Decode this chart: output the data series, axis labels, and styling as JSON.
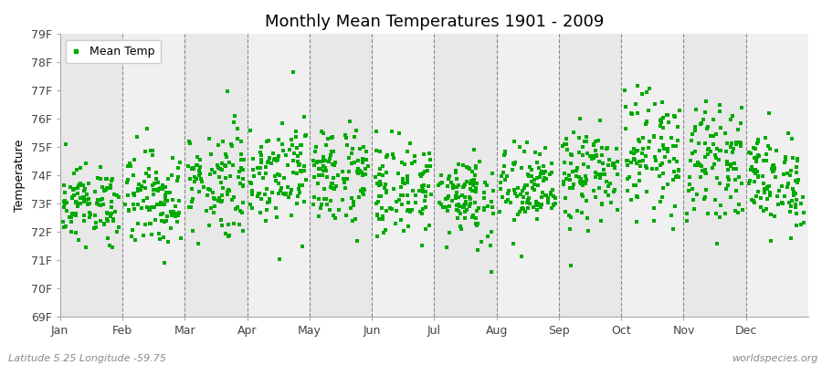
{
  "title": "Monthly Mean Temperatures 1901 - 2009",
  "ylabel": "Temperature",
  "xlabel_bottom": "Latitude 5.25 Longitude -59.75",
  "watermark": "worldspecies.org",
  "legend_label": "Mean Temp",
  "marker_color": "#00aa00",
  "marker_size": 2.5,
  "ylim": [
    69,
    79
  ],
  "yticks": [
    69,
    70,
    71,
    72,
    73,
    74,
    75,
    76,
    77,
    78,
    79
  ],
  "ytick_labels": [
    "69F",
    "70F",
    "71F",
    "72F",
    "73F",
    "74F",
    "75F",
    "76F",
    "77F",
    "78F",
    "79F"
  ],
  "months": [
    "Jan",
    "Feb",
    "Mar",
    "Apr",
    "May",
    "Jun",
    "Jul",
    "Aug",
    "Sep",
    "Oct",
    "Nov",
    "Dec"
  ],
  "n_years": 109,
  "bg_color": "#ffffff",
  "band_colors": [
    "#e8e8e8",
    "#f0f0f0"
  ],
  "title_fontsize": 13,
  "axis_fontsize": 9,
  "legend_fontsize": 9,
  "monthly_means": [
    73.0,
    73.2,
    73.8,
    74.2,
    74.0,
    73.5,
    73.3,
    73.5,
    74.0,
    74.8,
    74.5,
    73.8
  ],
  "monthly_stds": [
    0.65,
    0.85,
    1.0,
    0.9,
    0.9,
    0.85,
    0.8,
    0.75,
    0.85,
    1.05,
    0.95,
    0.85
  ]
}
